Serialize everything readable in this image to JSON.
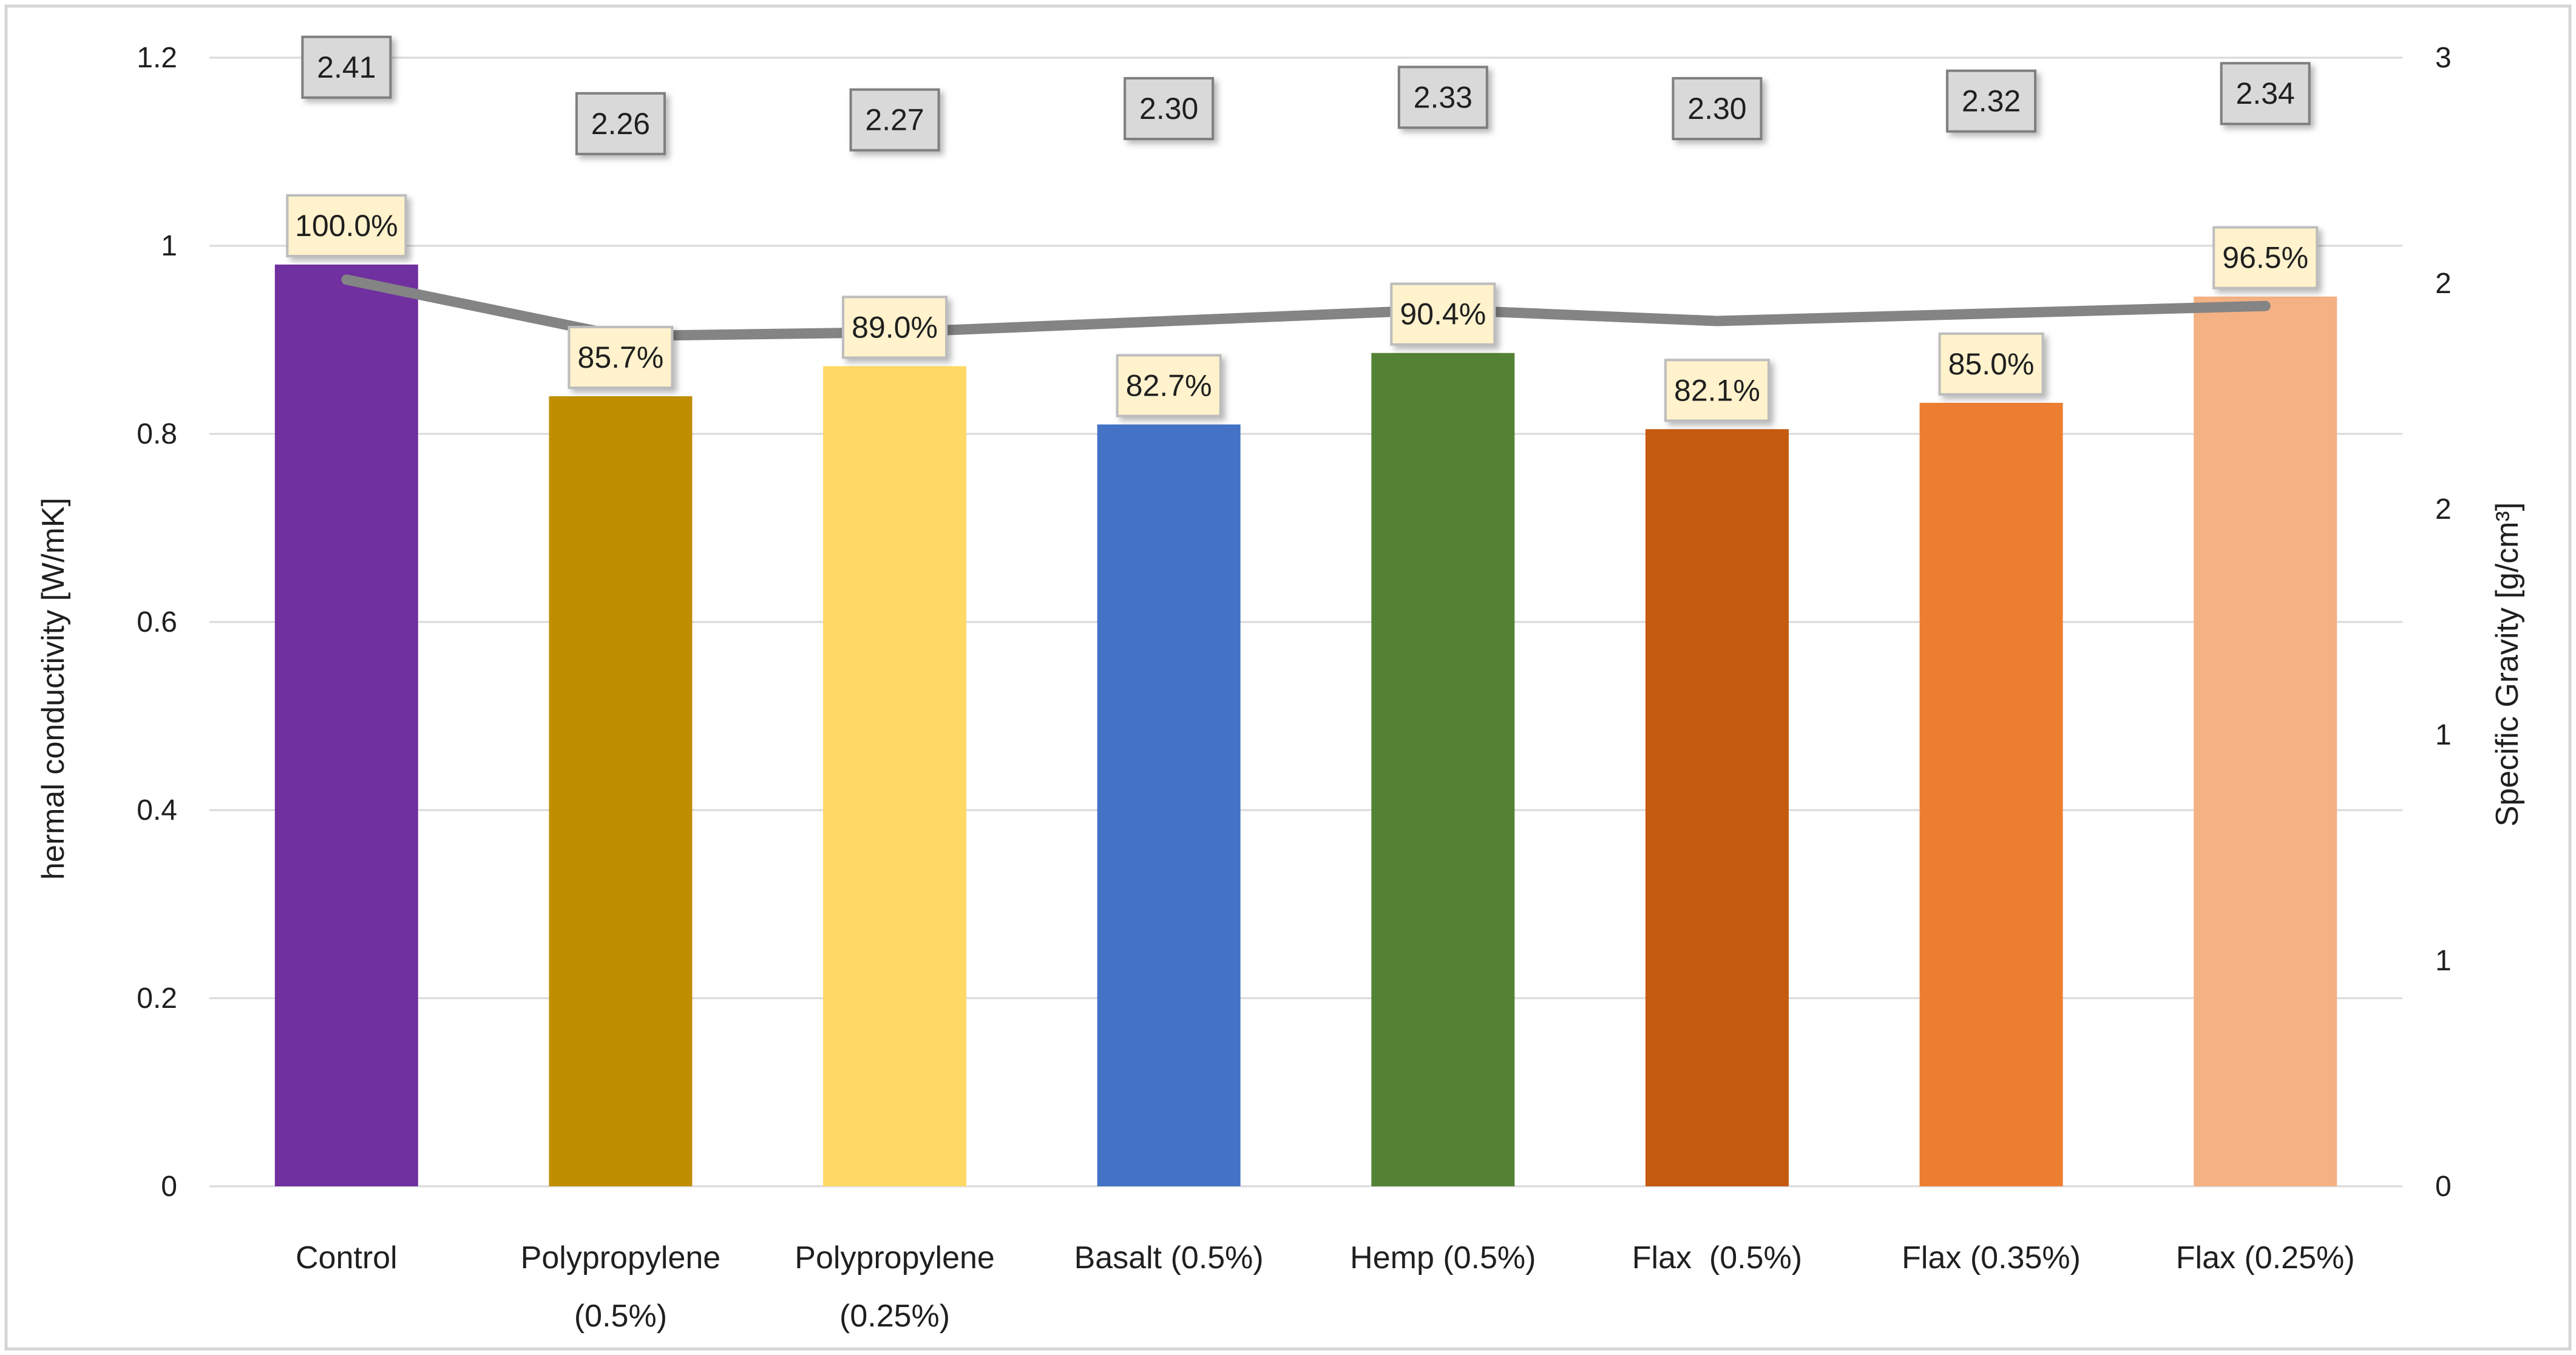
{
  "chart_data": {
    "type": "bar",
    "subtype": "combo-bar-line-dual-axis",
    "categories": [
      "Control",
      "Polypropylene\n(0.5%)",
      "Polypropylene\n(0.25%)",
      "Basalt (0.5%)",
      "Hemp (0.5%)",
      "Flax  (0.5%)",
      "Flax (0.35%)",
      "Flax (0.25%)"
    ],
    "series": [
      {
        "name": "Thermal conductivity (bars, left axis)",
        "axis": "left",
        "values": [
          0.98,
          0.84,
          0.872,
          0.81,
          0.886,
          0.805,
          0.833,
          0.946
        ],
        "labels": [
          "100.0%",
          "85.7%",
          "89.0%",
          "82.7%",
          "90.4%",
          "82.1%",
          "85.0%",
          "96.5%"
        ],
        "colors": [
          "#7030A0",
          "#BF8F00",
          "#FFD966",
          "#4472C4",
          "#548235",
          "#C55A11",
          "#ED7D31",
          "#F4B183"
        ]
      },
      {
        "name": "Specific Gravity (line, right axis)",
        "axis": "right",
        "values": [
          2.41,
          2.26,
          2.27,
          2.3,
          2.33,
          2.3,
          2.32,
          2.34
        ],
        "labels": [
          "2.41",
          "2.26",
          "2.27",
          "2.30",
          "2.33",
          "2.30",
          "2.32",
          "2.34"
        ],
        "color": "#848484"
      }
    ],
    "left_axis": {
      "title": "hermal conductivity [W/mK]",
      "range": [
        0,
        1.2
      ],
      "tick_values": [
        0,
        0.2,
        0.4,
        0.6,
        0.8,
        1,
        1.2
      ],
      "tick_labels": [
        "0",
        "0.2",
        "0.4",
        "0.6",
        "0.8",
        "1",
        "1.2"
      ]
    },
    "right_axis": {
      "title": "Specific Gravity [g/cm³]",
      "range": [
        0,
        3
      ],
      "tick_values": [
        0,
        0.6,
        1.2,
        1.8,
        2.4,
        3
      ],
      "tick_labels": [
        "0",
        "1",
        "1",
        "2",
        "2",
        "3"
      ]
    },
    "grid": true,
    "legend": "none",
    "title": ""
  },
  "styles": {
    "gridline_color": "#D9D9D9",
    "axis_line_color": "#D9D9D9",
    "frame_border_color": "#D5D5D5",
    "bar_label_fill": "#FFF2CC",
    "bar_label_border": "#BDBDBD",
    "line_label_fill": "#D9D9D9",
    "line_label_border": "#7F7F7F",
    "text_color": "#1f1f1f",
    "background": "#FFFFFF"
  }
}
